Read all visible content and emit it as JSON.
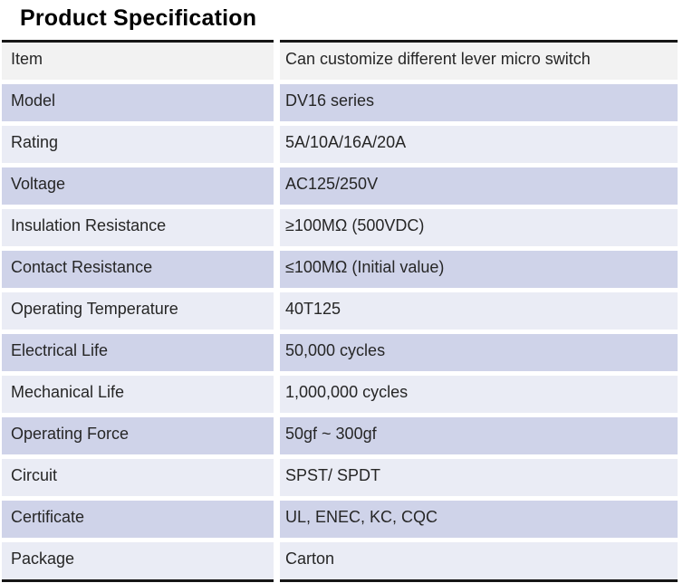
{
  "title": "Product Specification",
  "colors": {
    "header_row": "#f2f2f2",
    "dark_row": "#cfd3e9",
    "light_row": "#eaecf5",
    "border": "#161616",
    "text": "#262626",
    "title_text": "#000000",
    "gap": "#ffffff"
  },
  "table": {
    "rows": [
      {
        "label": "Item",
        "value": "Can customize different lever micro switch",
        "band": "header"
      },
      {
        "label": "Model",
        "value": "DV16 series",
        "band": "dark"
      },
      {
        "label": "Rating",
        "value": "5A/10A/16A/20A",
        "band": "light"
      },
      {
        "label": "Voltage",
        "value": "AC125/250V",
        "band": "dark"
      },
      {
        "label": "Insulation Resistance",
        "value": "≥100MΩ (500VDC)",
        "band": "light"
      },
      {
        "label": "Contact Resistance",
        "value": "≤100MΩ (Initial value)",
        "band": "dark"
      },
      {
        "label": "Operating Temperature",
        "value": "40T125",
        "band": "light"
      },
      {
        "label": "Electrical Life",
        "value": "50,000 cycles",
        "band": "dark"
      },
      {
        "label": "Mechanical Life",
        "value": "1,000,000 cycles",
        "band": "light"
      },
      {
        "label": "Operating Force",
        "value": "50gf ~ 300gf",
        "band": "dark"
      },
      {
        "label": "Circuit",
        "value": "SPST/ SPDT",
        "band": "light"
      },
      {
        "label": "Certificate",
        "value": "UL, ENEC, KC, CQC",
        "band": "dark"
      },
      {
        "label": "Package",
        "value": "Carton",
        "band": "light"
      }
    ]
  }
}
